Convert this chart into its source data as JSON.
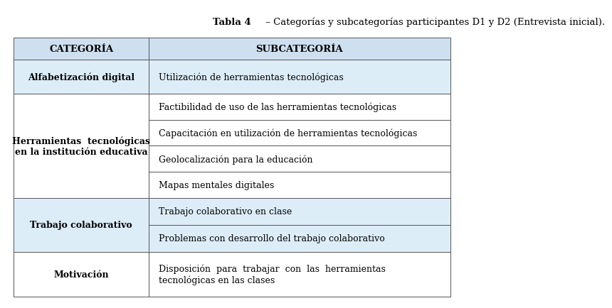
{
  "title_bold": "Tabla 4",
  "title_rest": " – Categorías y subcategorías participantes D1 y D2 (Entrevista inicial).",
  "title_fontsize": 9.5,
  "header_col1": "CATEGORÍA",
  "header_col2": "SUBCATEGORÍA",
  "header_fontsize": 9.5,
  "body_fontsize": 9,
  "col_split": 0.315,
  "background_color": "#ffffff",
  "header_bg": "#cee0f0",
  "row_bg_light": "#ddedf8",
  "row_bg_white": "#ffffff",
  "border_color": "#555555",
  "rows": [
    {
      "category": "Alfabetización digital",
      "cat_lines": 1,
      "subcategories": [
        "Utilización de herramientas tecnológicas"
      ],
      "sub_lines": [
        1
      ]
    },
    {
      "category": "Herramientas  tecnológicas\nen la institución educativa",
      "cat_lines": 2,
      "subcategories": [
        "Factibilidad de uso de las herramientas tecnológicas",
        "Capacitación en utilización de herramientas tecnológicas",
        "Geolocalización para la educación",
        "Mapas mentales digitales"
      ],
      "sub_lines": [
        1,
        1,
        1,
        1
      ]
    },
    {
      "category": "Trabajo colaborativo",
      "cat_lines": 1,
      "subcategories": [
        "Trabajo colaborativo en clase",
        "Problemas con desarrollo del trabajo colaborativo"
      ],
      "sub_lines": [
        1,
        1
      ]
    },
    {
      "category": "Motivación",
      "cat_lines": 1,
      "subcategories": [
        "Disposición  para  trabajar  con  las  herramientas\ntecnológicas en las clases"
      ],
      "sub_lines": [
        2
      ]
    }
  ]
}
